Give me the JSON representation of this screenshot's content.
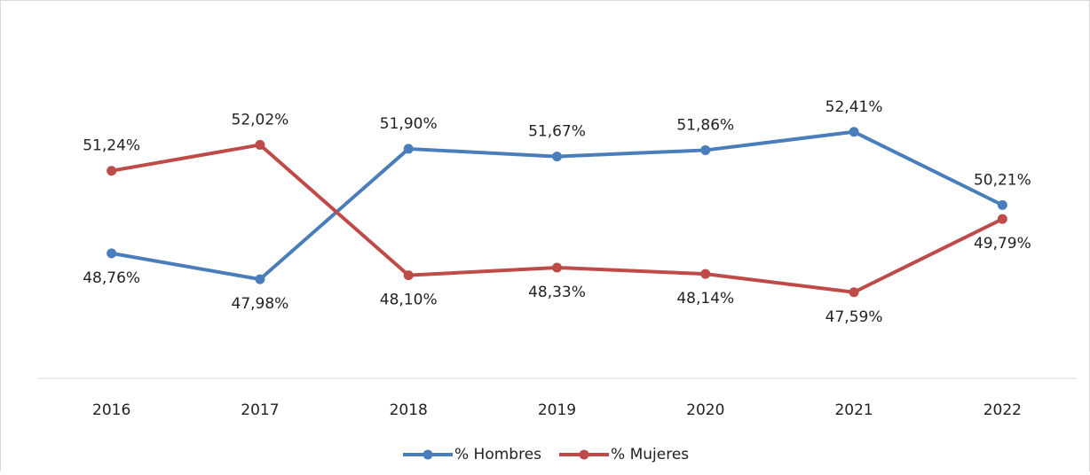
{
  "chart_data": {
    "type": "line",
    "categories": [
      "2016",
      "2017",
      "2018",
      "2019",
      "2020",
      "2021",
      "2022"
    ],
    "series": [
      {
        "name": "% Hombres",
        "color": "#4a7ebb",
        "values": [
          48.76,
          47.98,
          51.9,
          51.67,
          51.86,
          52.41,
          50.21
        ],
        "value_labels": [
          "48,76%",
          "47,98%",
          "51,90%",
          "51,67%",
          "51,86%",
          "52,41%",
          "50,21%"
        ]
      },
      {
        "name": "% Mujeres",
        "color": "#be4b48",
        "values": [
          51.24,
          52.02,
          48.1,
          48.33,
          48.14,
          47.59,
          49.79
        ],
        "value_labels": [
          "51,24%",
          "52,02%",
          "48,10%",
          "48,33%",
          "48,14%",
          "47,59%",
          "49,79%"
        ]
      }
    ],
    "ylim": [
      45,
      56
    ],
    "legend": "bottom"
  }
}
